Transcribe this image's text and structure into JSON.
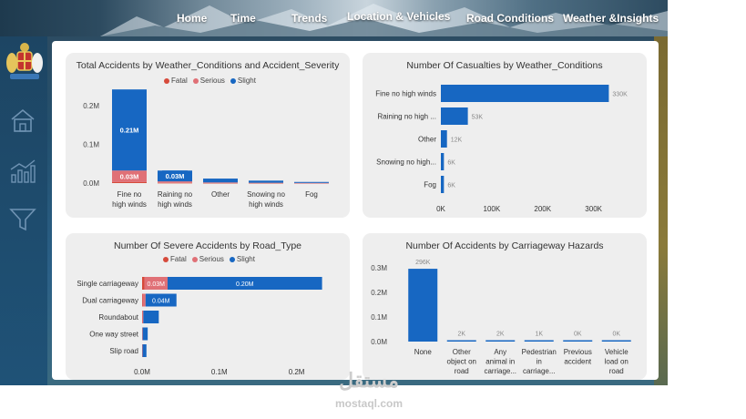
{
  "nav": [
    "Home",
    "Time",
    "Trends",
    "Location & Vehicles",
    "Road Conditions",
    "Weather &Insights"
  ],
  "colors": {
    "fatal": "#d64a3b",
    "serious": "#e07076",
    "slight": "#1767c2",
    "card": "#eeeeee"
  },
  "watermark": {
    "arabic": "مستقل",
    "latin": "mostaql.com"
  },
  "chart_data": [
    {
      "type": "bar",
      "title": "Total Accidents by Weather_Conditions and Accident_Severity",
      "legend": [
        "Fatal",
        "Serious",
        "Slight"
      ],
      "categories": [
        [
          "Fine no",
          "high winds"
        ],
        [
          "Raining no",
          "high winds"
        ],
        [
          "Other"
        ],
        [
          "Snowing no",
          "high winds"
        ],
        [
          "Fog"
        ]
      ],
      "series": [
        {
          "name": "Fatal",
          "values": [
            2500,
            400,
            150,
            50,
            30
          ]
        },
        {
          "name": "Serious",
          "values": [
            30000,
            4000,
            1500,
            800,
            400
          ]
        },
        {
          "name": "Slight",
          "values": [
            210000,
            28000,
            10000,
            5500,
            2500
          ]
        }
      ],
      "data_labels": [
        [
          "",
          "0.03M",
          "0.21M"
        ],
        [
          "",
          "",
          "0.03M"
        ]
      ],
      "yticks": [
        "0.0M",
        "0.1M",
        "0.2M"
      ],
      "ylim": [
        0,
        250000
      ]
    },
    {
      "type": "bar",
      "title": "Number Of Casualties by Weather_Conditions",
      "categories": [
        "Fine no high winds",
        "Raining no high ...",
        "Other",
        "Snowing no high...",
        "Fog"
      ],
      "values": [
        330000,
        53000,
        12000,
        6000,
        6000
      ],
      "data_labels": [
        "330K",
        "53K",
        "12K",
        "6K",
        "6K"
      ],
      "xticks": [
        "0K",
        "100K",
        "200K",
        "300K"
      ],
      "xlim": [
        0,
        340000
      ]
    },
    {
      "type": "bar",
      "title": "Number Of Severe Accidents by Road_Type",
      "legend": [
        "Fatal",
        "Serious",
        "Slight"
      ],
      "categories": [
        "Single carriageway",
        "Dual carriageway",
        "Roundabout",
        "One way street",
        "Slip road"
      ],
      "series": [
        {
          "name": "Fatal",
          "values": [
            3000,
            500,
            100,
            50,
            30
          ]
        },
        {
          "name": "Serious",
          "values": [
            30000,
            4000,
            1500,
            700,
            600
          ]
        },
        {
          "name": "Slight",
          "values": [
            200000,
            40000,
            20000,
            6500,
            5000
          ]
        }
      ],
      "data_labels": [
        [
          "",
          "0.03M",
          "0.20M"
        ],
        [
          "",
          "",
          "0.04M"
        ]
      ],
      "xticks": [
        "0.0M",
        "0.1M",
        "0.2M"
      ],
      "xlim": [
        0,
        250000
      ]
    },
    {
      "type": "bar",
      "title": "Number Of Accidents by Carriageway Hazards",
      "categories": [
        [
          "None"
        ],
        [
          "Other",
          "object on",
          "road"
        ],
        [
          "Any",
          "animal in",
          "carriage..."
        ],
        [
          "Pedestrian",
          "in",
          "carriage..."
        ],
        [
          "Previous",
          "accident"
        ],
        [
          "Vehicle",
          "load on",
          "road"
        ]
      ],
      "values": [
        296000,
        2000,
        2000,
        1000,
        0,
        0
      ],
      "data_labels": [
        "296K",
        "2K",
        "2K",
        "1K",
        "0K",
        "0K"
      ],
      "yticks": [
        "0.0M",
        "0.1M",
        "0.2M",
        "0.3M"
      ],
      "ylim": [
        0,
        300000
      ]
    }
  ]
}
